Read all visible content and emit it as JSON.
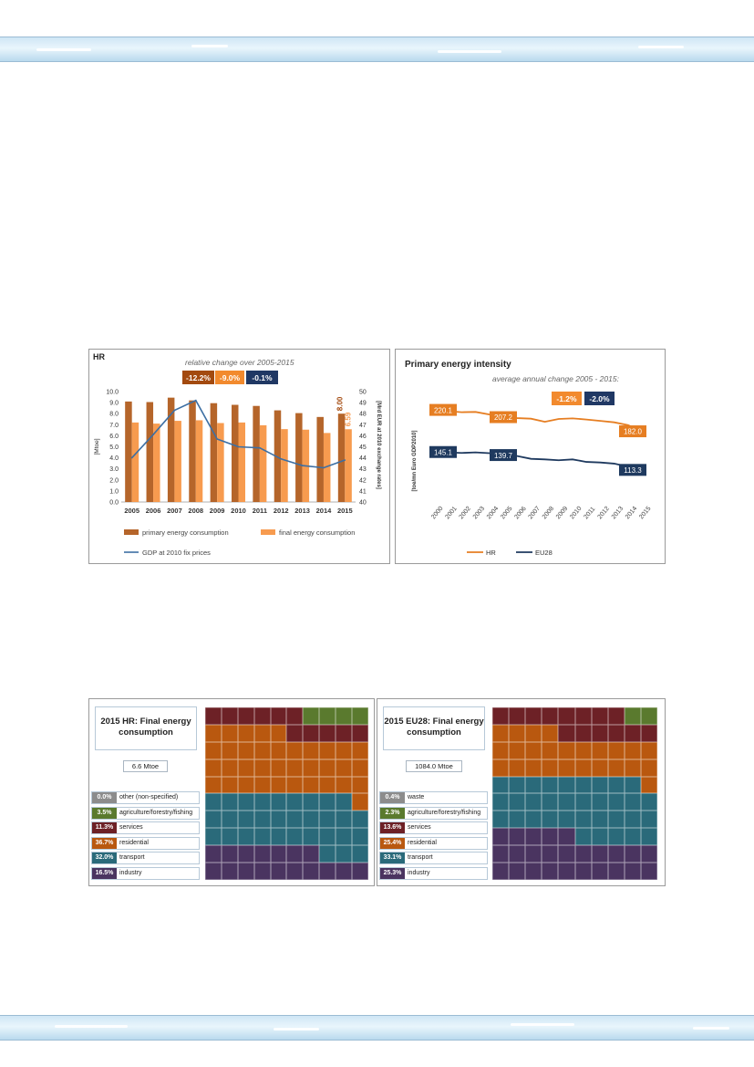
{
  "colors": {
    "primary_bar": "#b5652a",
    "final_bar": "#f79b4f",
    "gdp_line": "#3d6fa3",
    "hr_line": "#e67e22",
    "eu_line": "#1f3a5f",
    "badge_dark_orange": "#a34a0f",
    "badge_orange": "#f28a2e",
    "badge_navy": "#203864",
    "cat_other": "#8c8c8c",
    "cat_agriculture": "#5a7a2e",
    "cat_services": "#6d2126",
    "cat_residential": "#b9580f",
    "cat_transport": "#2a6a7a",
    "cat_industry": "#4a3460"
  },
  "hr_chart": {
    "title": "HR",
    "subtitle": "relative change over 2005-2015",
    "badges": [
      "-12.2%",
      "-9.0%",
      "-0.1%"
    ],
    "end_labels": [
      "8.00",
      "6.59"
    ]
  },
  "intensity_chart": {
    "title": "Primary energy intensity",
    "subtitle": "average annual change 2005 - 2015:",
    "badges": [
      "-1.2%",
      "-2.0%"
    ],
    "labels_hr": [
      "220.1",
      "207.2",
      "182.0"
    ],
    "labels_eu": [
      "145.1",
      "139.7",
      "113.3"
    ]
  },
  "chart_data": [
    {
      "type": "bar",
      "title": "HR",
      "categories": [
        "2005",
        "2006",
        "2007",
        "2008",
        "2009",
        "2010",
        "2011",
        "2012",
        "2013",
        "2014",
        "2015"
      ],
      "series": [
        {
          "name": "primary energy consumption",
          "values": [
            9.1,
            9.05,
            9.45,
            9.2,
            8.95,
            8.8,
            8.7,
            8.3,
            8.05,
            7.7,
            8.0
          ]
        },
        {
          "name": "final energy consumption",
          "values": [
            7.2,
            7.1,
            7.35,
            7.4,
            7.15,
            7.2,
            6.95,
            6.6,
            6.55,
            6.25,
            6.59
          ]
        },
        {
          "name": "GDP at 2010 fix prices",
          "type": "line",
          "axis": "right",
          "values": [
            44.0,
            46.1,
            48.3,
            49.2,
            45.7,
            45.0,
            44.9,
            43.9,
            43.3,
            43.1,
            43.8
          ]
        }
      ],
      "ylabel": "[Mtoe]",
      "ylabel_right": "[Mrd EUR at 2010 exchange rates]",
      "ylim": [
        0,
        10
      ],
      "ylim_right": [
        40,
        50
      ],
      "yticks": [
        "0.0",
        "1.0",
        "2.0",
        "3.0",
        "4.0",
        "5.0",
        "6.0",
        "7.0",
        "8.0",
        "9.0",
        "10.0"
      ],
      "yticks_right": [
        "40",
        "41",
        "42",
        "43",
        "44",
        "45",
        "46",
        "47",
        "48",
        "49",
        "50"
      ],
      "legend": [
        "primary energy consumption",
        "final energy consumption",
        "GDP at 2010 fix prices"
      ]
    },
    {
      "type": "line",
      "title": "Primary energy intensity",
      "x": [
        "2000",
        "2001",
        "2002",
        "2003",
        "2004",
        "2005",
        "2006",
        "2007",
        "2008",
        "2009",
        "2010",
        "2011",
        "2012",
        "2013",
        "2014",
        "2015"
      ],
      "series": [
        {
          "name": "HR",
          "values": [
            220.1,
            218.0,
            216.0,
            216.5,
            212.0,
            207.2,
            205.5,
            204.5,
            199.0,
            204.0,
            205.0,
            203.0,
            200.5,
            198.0,
            193.0,
            182.0
          ]
        },
        {
          "name": "EU28",
          "values": [
            145.1,
            144.5,
            143.5,
            144.5,
            143.0,
            139.7,
            138.0,
            133.0,
            132.0,
            130.5,
            132.0,
            127.5,
            126.5,
            124.5,
            119.0,
            113.3
          ]
        }
      ],
      "ylabel": "[toe/mn Euro GDP2010]",
      "legend": [
        "HR",
        "EU28"
      ]
    }
  ],
  "final_hr": {
    "title": "2015 HR: Final energy consumption",
    "total": "6.6 Mtoe",
    "items": [
      {
        "pct": "0.0%",
        "label": "other (non-specified)",
        "color": "#8c8c8c"
      },
      {
        "pct": "3.5%",
        "label": "agriculture/forestry/fishing",
        "color": "#5a7a2e"
      },
      {
        "pct": "11.3%",
        "label": "services",
        "color": "#6d2126"
      },
      {
        "pct": "36.7%",
        "label": "residential",
        "color": "#b9580f"
      },
      {
        "pct": "32.0%",
        "label": "transport",
        "color": "#2a6a7a"
      },
      {
        "pct": "16.5%",
        "label": "industry",
        "color": "#4a3460"
      }
    ]
  },
  "final_eu": {
    "title": "2015 EU28: Final energy consumption",
    "total": "1084.0 Mtoe",
    "items": [
      {
        "pct": "0.4%",
        "label": "waste",
        "color": "#8c8c8c"
      },
      {
        "pct": "2.3%",
        "label": "agriculture/forestry/fishing",
        "color": "#5a7a2e"
      },
      {
        "pct": "13.6%",
        "label": "services",
        "color": "#6d2126"
      },
      {
        "pct": "25.4%",
        "label": "residential",
        "color": "#b9580f"
      },
      {
        "pct": "33.1%",
        "label": "transport",
        "color": "#2a6a7a"
      },
      {
        "pct": "25.3%",
        "label": "industry",
        "color": "#4a3460"
      }
    ]
  }
}
